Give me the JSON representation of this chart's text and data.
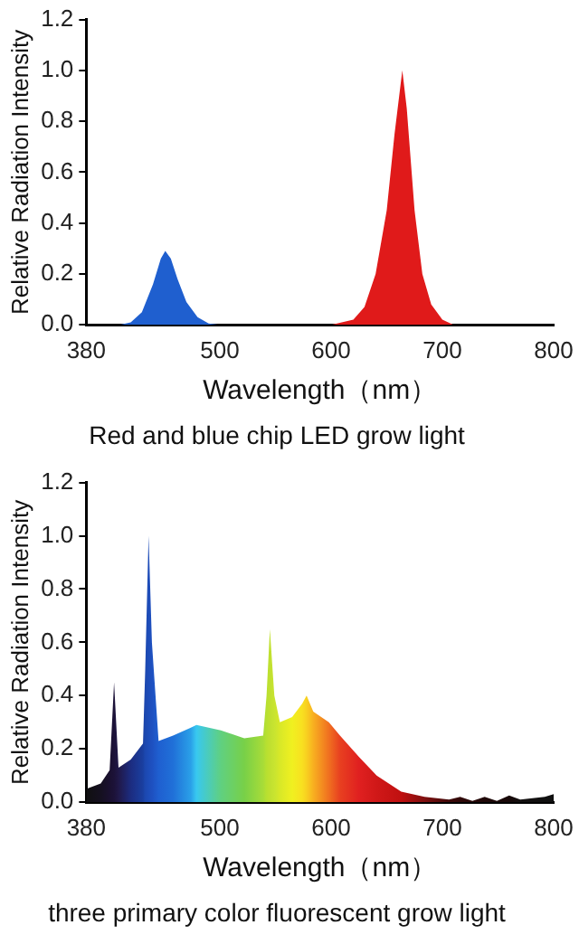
{
  "chart_data": [
    {
      "type": "area",
      "title": "Red and blue chip LED grow light",
      "xlabel": "Wavelength（nm）",
      "ylabel": "Relative Radiation Intensity",
      "xlim": [
        380,
        800
      ],
      "xticks": [
        380,
        500,
        600,
        700,
        800
      ],
      "ylim": [
        0,
        1.2
      ],
      "yticks": [
        {
          "value": 0,
          "label": "0.0"
        },
        {
          "value": 0.2,
          "label": "0.2"
        },
        {
          "value": 0.4,
          "label": "0.4"
        },
        {
          "value": 0.6,
          "label": "0.6"
        },
        {
          "value": 0.8,
          "label": "0.8"
        },
        {
          "value": 1,
          "label": "1.0"
        },
        {
          "value": 1.2,
          "label": "1.2"
        }
      ],
      "grid": false,
      "legend": false,
      "series": [
        {
          "color": "#1f5fcf",
          "x": [
            410,
            420,
            430,
            440,
            447,
            451,
            456,
            462,
            470,
            480,
            490,
            500
          ],
          "values": [
            0,
            0.01,
            0.05,
            0.16,
            0.26,
            0.29,
            0.26,
            0.18,
            0.09,
            0.03,
            0.005,
            0
          ]
        },
        {
          "color": "#e01a1a",
          "x": [
            600,
            620,
            630,
            640,
            650,
            657,
            664,
            668,
            675,
            682,
            690,
            700,
            710
          ],
          "values": [
            0,
            0.02,
            0.07,
            0.2,
            0.45,
            0.75,
            1.0,
            0.85,
            0.45,
            0.2,
            0.08,
            0.02,
            0
          ]
        }
      ]
    },
    {
      "type": "area",
      "title": "three primary color fluorescent grow light",
      "xlabel": "Wavelength（nm）",
      "ylabel": "Relative Radiation Intensity",
      "xlim": [
        380,
        800
      ],
      "xticks": [
        380,
        500,
        600,
        700,
        800
      ],
      "ylim": [
        0,
        1.2
      ],
      "yticks": [
        {
          "value": 0,
          "label": "0.0"
        },
        {
          "value": 0.2,
          "label": "0.2"
        },
        {
          "value": 0.4,
          "label": "0.4"
        },
        {
          "value": 0.6,
          "label": "0.6"
        },
        {
          "value": 0.8,
          "label": "0.8"
        },
        {
          "value": 1,
          "label": "1.0"
        },
        {
          "value": 1.2,
          "label": "1.2"
        }
      ],
      "grid": false,
      "legend": false,
      "series": [
        {
          "color": "#40a0e0",
          "x": [
            380,
            393,
            401,
            405,
            409,
            420,
            431,
            433,
            436,
            439,
            445,
            458,
            474,
            479,
            501,
            522,
            539,
            542,
            545,
            549,
            554,
            565,
            574,
            578,
            584,
            598,
            608,
            625,
            641,
            663,
            684,
            706,
            716,
            727,
            738,
            749,
            760,
            770,
            781,
            792,
            800
          ],
          "values": [
            0.05,
            0.07,
            0.12,
            0.45,
            0.13,
            0.16,
            0.22,
            0.5,
            1.0,
            0.6,
            0.23,
            0.25,
            0.28,
            0.29,
            0.27,
            0.24,
            0.25,
            0.4,
            0.65,
            0.4,
            0.3,
            0.32,
            0.37,
            0.4,
            0.34,
            0.3,
            0.25,
            0.17,
            0.1,
            0.04,
            0.02,
            0.01,
            0.02,
            0.005,
            0.02,
            0.005,
            0.025,
            0.01,
            0.015,
            0.02,
            0.03
          ],
          "colors": [
            "#101010",
            "#151020",
            "#1a1030",
            "#1c1238",
            "#201848",
            "#1c2c80",
            "#1a3fa0",
            "#1c48b0",
            "#1d4cb8",
            "#1e50c0",
            "#1f5fd0",
            "#2070d8",
            "#2aa0e8",
            "#38c8f0",
            "#60d080",
            "#78d048",
            "#a8dc38",
            "#b8e030",
            "#c0e030",
            "#c8e430",
            "#d8e828",
            "#f0f020",
            "#f8e020",
            "#f8d020",
            "#f8b020",
            "#f07020",
            "#e84020",
            "#e02020",
            "#d01818",
            "#c01010",
            "#801010",
            "#400808",
            "#300808",
            "#280808",
            "#200808",
            "#1c0808",
            "#180808",
            "#141010",
            "#121010",
            "#101010",
            "#101010"
          ]
        }
      ]
    }
  ]
}
